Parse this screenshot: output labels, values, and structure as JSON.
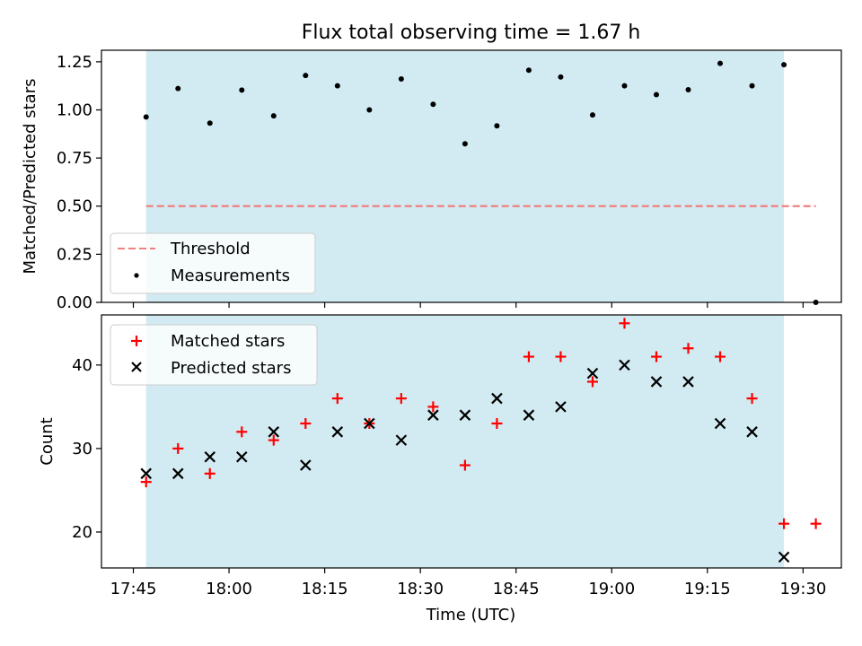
{
  "chart_data": [
    {
      "type": "scatter",
      "title": "Flux total observing time = 1.67 h",
      "xlabel": "",
      "ylabel": "Matched/Predicted stars",
      "ylim": [
        0,
        1.31
      ],
      "yticks": [
        0.0,
        0.25,
        0.5,
        0.75,
        1.0,
        1.25
      ],
      "ytick_labels": [
        "0.00",
        "0.25",
        "0.50",
        "0.75",
        "1.00",
        "1.25"
      ],
      "xticks": [
        "17:45",
        "18:00",
        "18:15",
        "18:30",
        "18:45",
        "19:00",
        "19:15",
        "19:30"
      ],
      "xlim": [
        "17:40",
        "19:36"
      ],
      "shaded_span": {
        "start": "17:47",
        "end": "19:27",
        "color": "#add8e6"
      },
      "threshold": {
        "name": "Threshold",
        "value": 0.5,
        "x_start": "17:47",
        "x_end": "19:32",
        "color": "#f08080"
      },
      "series": [
        {
          "name": "Measurements",
          "color": "#000000",
          "marker": "dot",
          "x": [
            "17:47",
            "17:52",
            "17:57",
            "18:02",
            "18:07",
            "18:12",
            "18:17",
            "18:22",
            "18:27",
            "18:32",
            "18:37",
            "18:42",
            "18:47",
            "18:52",
            "18:57",
            "19:02",
            "19:07",
            "19:12",
            "19:17",
            "19:22",
            "19:27",
            "19:32"
          ],
          "y": [
            0.963,
            1.111,
            0.931,
            1.103,
            0.969,
            1.179,
            1.125,
            1.0,
            1.161,
            1.029,
            0.824,
            0.917,
            1.206,
            1.171,
            0.974,
            1.125,
            1.079,
            1.105,
            1.242,
            1.125,
            1.235,
            0.0
          ]
        }
      ],
      "legend": {
        "position": "lower-left",
        "entries": [
          "Threshold",
          "Measurements"
        ]
      }
    },
    {
      "type": "scatter",
      "title": "",
      "xlabel": "Time (UTC)",
      "ylabel": "Count",
      "ylim": [
        15.7,
        46.0
      ],
      "yticks": [
        20,
        30,
        40
      ],
      "ytick_labels": [
        "20",
        "30",
        "40"
      ],
      "xticks": [
        "17:45",
        "18:00",
        "18:15",
        "18:30",
        "18:45",
        "19:00",
        "19:15",
        "19:30"
      ],
      "xlim": [
        "17:40",
        "19:36"
      ],
      "shaded_span": {
        "start": "17:47",
        "end": "19:27",
        "color": "#add8e6"
      },
      "series": [
        {
          "name": "Matched stars",
          "color": "#ff0000",
          "marker": "plus",
          "x": [
            "17:47",
            "17:52",
            "17:57",
            "18:02",
            "18:07",
            "18:12",
            "18:17",
            "18:22",
            "18:27",
            "18:32",
            "18:37",
            "18:42",
            "18:47",
            "18:52",
            "18:57",
            "19:02",
            "19:07",
            "19:12",
            "19:17",
            "19:22",
            "19:27",
            "19:32"
          ],
          "y": [
            26,
            30,
            27,
            32,
            31,
            33,
            36,
            33,
            36,
            35,
            28,
            33,
            41,
            41,
            38,
            45,
            41,
            42,
            41,
            36,
            21,
            21
          ]
        },
        {
          "name": "Predicted stars",
          "color": "#000000",
          "marker": "x",
          "x": [
            "17:47",
            "17:52",
            "17:57",
            "18:02",
            "18:07",
            "18:12",
            "18:17",
            "18:22",
            "18:27",
            "18:32",
            "18:37",
            "18:42",
            "18:47",
            "18:52",
            "18:57",
            "19:02",
            "19:07",
            "19:12",
            "19:17",
            "19:22",
            "19:27"
          ],
          "y": [
            27,
            27,
            29,
            29,
            32,
            28,
            32,
            33,
            31,
            34,
            34,
            36,
            34,
            35,
            39,
            40,
            38,
            38,
            33,
            32,
            17
          ]
        }
      ],
      "legend": {
        "position": "top-left",
        "entries": [
          "Matched stars",
          "Predicted stars"
        ]
      }
    }
  ]
}
